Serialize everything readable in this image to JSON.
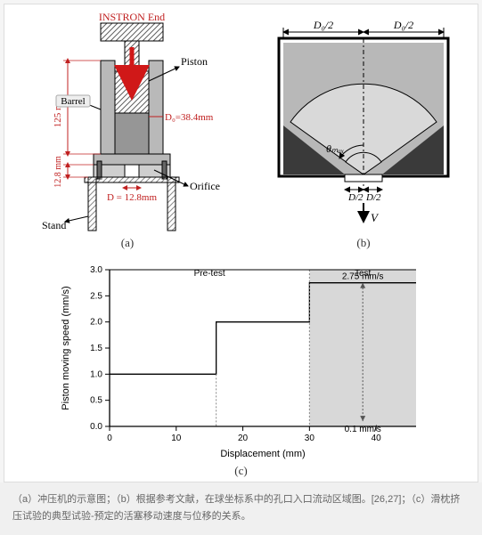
{
  "panel_a": {
    "title_top": "INSTRON End",
    "labels": {
      "piston": "Piston",
      "barrel": "Barrel",
      "orifice": "Orifice",
      "stand": "Stand"
    },
    "dims": {
      "height_125": "125 mm",
      "height_12_8": "12.8 mm",
      "d0": "D₀=38.4mm",
      "d": "D = 12.8mm"
    },
    "colors": {
      "title": "#c02020",
      "dim": "#c02020",
      "piston_hatch": "#555555",
      "barrel_fill": "#b0b0b0",
      "stand_hatch": "#888888",
      "sleeve_fill": "#9e9e9e",
      "arrow": "#d01818",
      "outline": "#000000"
    },
    "sublabel": "(a)"
  },
  "panel_b": {
    "labels": {
      "d0_half_left": "D₀/2",
      "d0_half_right": "D₀/2",
      "d_half_left": "D/2",
      "d_half_right": "D/2",
      "theta": "θₘₐₓ",
      "v": "V"
    },
    "colors": {
      "outer_fill": "#b8b8b8",
      "fan_fill": "#d9d9d9",
      "dark_wedge": "#3a3a3a",
      "outline": "#000000"
    },
    "sublabel": "(b)"
  },
  "panel_c": {
    "chart": {
      "type": "step-line",
      "xlabel": "Displacement (mm)",
      "ylabel": "Piston moving speed (mm/s)",
      "xlim": [
        0,
        46
      ],
      "ylim": [
        0,
        3.0
      ],
      "xticks": [
        0,
        10,
        20,
        30,
        40
      ],
      "yticks": [
        0.0,
        0.5,
        1.0,
        1.5,
        2.0,
        2.5,
        3.0
      ],
      "region_labels": {
        "pretest": "Pre-test",
        "test": "Test"
      },
      "test_shade_x": [
        30,
        46
      ],
      "speed_high_label": "2.75 mm/s",
      "speed_low_label": "0.1 mm/s",
      "step_points": [
        {
          "x": 0,
          "y": 1.0
        },
        {
          "x": 16,
          "y": 1.0
        },
        {
          "x": 16,
          "y": 2.0
        },
        {
          "x": 30,
          "y": 2.0
        },
        {
          "x": 30,
          "y": 2.75
        },
        {
          "x": 46,
          "y": 2.75
        }
      ],
      "dotted_pretest_x": 16,
      "dotted_vertical_speed_x": 38,
      "speed_low_y": 0.1,
      "speed_high_y": 2.75,
      "colors": {
        "axis": "#000000",
        "line": "#000000",
        "dotted": "#888888",
        "shade": "#d8d8d8",
        "text": "#000000",
        "background": "#ffffff"
      },
      "line_width": 1.3,
      "label_fontsize": 11,
      "tick_fontsize": 10
    },
    "sublabel": "(c)"
  },
  "caption": "（a）冲压机的示意图；（b）根据参考文献，在球坐标系中的孔口入口流动区域图。[26,27]；（c）滑枕挤压试验的典型试验-预定的活塞移动速度与位移的关系。"
}
